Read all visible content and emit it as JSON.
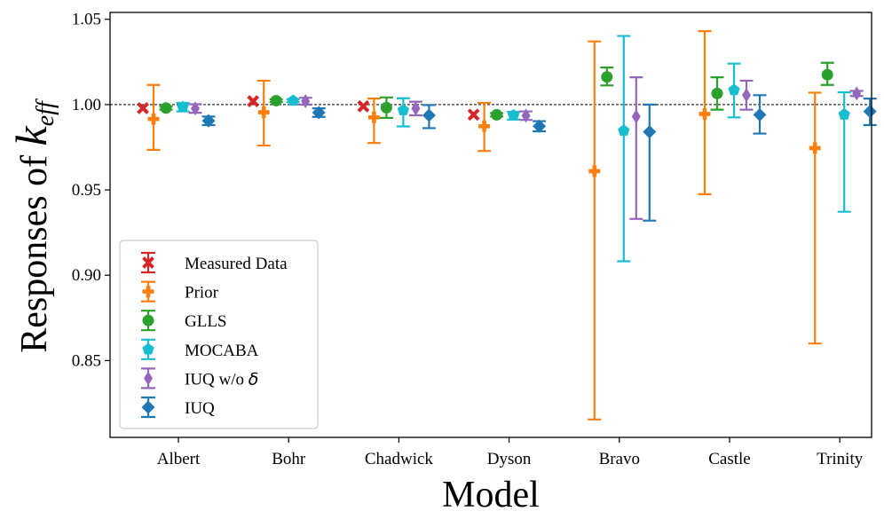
{
  "chart_data": {
    "type": "errorbar",
    "title": "",
    "xlabel": "Model",
    "ylabel_prefix": "Responses of ",
    "ylabel_symbol": "k",
    "ylabel_subscript": "eff",
    "ylim": [
      0.805,
      1.054
    ],
    "yticks": [
      0.85,
      0.9,
      0.95,
      1.0,
      1.05
    ],
    "ytick_labels": [
      "0.85",
      "0.90",
      "0.95",
      "1.00",
      "1.05"
    ],
    "reference_line": 1.0,
    "grid": false,
    "legend_position": "lower-left",
    "categories": [
      "Albert",
      "Bohr",
      "Chadwick",
      "Dyson",
      "Bravo",
      "Castle",
      "Trinity"
    ],
    "series": [
      {
        "name": "Measured Data",
        "legend_text": "Measured Data",
        "legend_symbol": "",
        "color": "#d62728",
        "marker": "x",
        "values": [
          0.9979,
          1.002,
          0.999,
          0.9941,
          null,
          null,
          null
        ],
        "err_lower": [
          0.0,
          0.0,
          0.0,
          0.0,
          null,
          null,
          null
        ],
        "err_upper": [
          0.0,
          0.0,
          0.0,
          0.0,
          null,
          null,
          null
        ]
      },
      {
        "name": "Prior",
        "legend_text": "Prior",
        "legend_symbol": "",
        "color": "#ff7f0e",
        "marker": "P",
        "values": [
          0.9915,
          0.9955,
          0.9925,
          0.9873,
          0.961,
          0.9945,
          0.9745
        ],
        "err_lower": [
          0.018,
          0.0195,
          0.015,
          0.0145,
          0.1455,
          0.047,
          0.1145
        ],
        "err_upper": [
          0.02,
          0.0185,
          0.011,
          0.0137,
          0.076,
          0.0485,
          0.0325
        ]
      },
      {
        "name": "GLLS",
        "legend_text": "GLLS",
        "legend_symbol": "",
        "color": "#2ca02c",
        "marker": "o",
        "values": [
          0.998,
          1.0023,
          0.9982,
          0.994,
          1.0162,
          1.0065,
          1.0175
        ],
        "err_lower": [
          0.001,
          0.0008,
          0.006,
          0.001,
          0.005,
          0.0095,
          0.006
        ],
        "err_upper": [
          0.001,
          0.0008,
          0.006,
          0.001,
          0.0055,
          0.0095,
          0.007
        ]
      },
      {
        "name": "MOCABA",
        "legend_text": "MOCABA",
        "legend_symbol": "",
        "color": "#17becf",
        "marker": "p",
        "values": [
          0.9985,
          1.0023,
          0.9967,
          0.9937,
          0.9847,
          1.0085,
          0.9942
        ],
        "err_lower": [
          0.0025,
          0.0008,
          0.0095,
          0.0025,
          0.0765,
          0.016,
          0.057
        ],
        "err_upper": [
          0.0025,
          0.0008,
          0.007,
          0.002,
          0.0555,
          0.0155,
          0.013
        ]
      },
      {
        "name": "IUQ w/o delta",
        "legend_text": "IUQ w/o ",
        "legend_symbol": "δ",
        "color": "#9467bd",
        "marker": "d",
        "values": [
          0.9977,
          1.002,
          0.9977,
          0.9935,
          0.993,
          1.0055,
          1.0065
        ],
        "err_lower": [
          0.0025,
          0.002,
          0.004,
          0.0025,
          0.06,
          0.0085,
          0.0015
        ],
        "err_upper": [
          0.0025,
          0.002,
          0.004,
          0.0025,
          0.023,
          0.0085,
          0.0015
        ]
      },
      {
        "name": "IUQ",
        "legend_text": "IUQ",
        "legend_symbol": "",
        "color": "#1f77b4",
        "marker": "D",
        "values": [
          0.9905,
          0.9953,
          0.9937,
          0.9873,
          0.984,
          0.994,
          0.996
        ],
        "err_lower": [
          0.0025,
          0.0025,
          0.0075,
          0.003,
          0.052,
          0.011,
          0.008
        ],
        "err_upper": [
          0.0025,
          0.0025,
          0.006,
          0.003,
          0.016,
          0.0115,
          0.0075
        ]
      }
    ]
  }
}
